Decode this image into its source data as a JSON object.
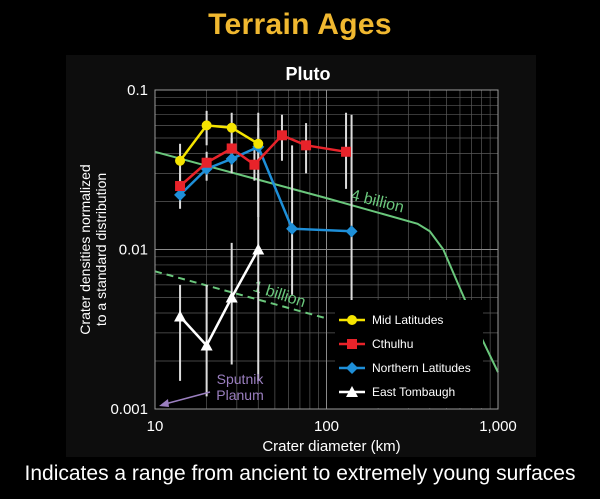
{
  "page": {
    "title": "Terrain Ages",
    "caption": "Indicates a range from ancient to extremely  young surfaces"
  },
  "colors": {
    "title": "#f0b830",
    "mid_latitudes": "#f5e400",
    "cthulhu": "#e8232a",
    "northern_latitudes": "#1e8fd8",
    "east_tombaugh": "#ffffff",
    "age_curve": "#6ac77c",
    "sputnik": "#9b7fc0"
  },
  "chart_data": {
    "type": "line",
    "title": "Pluto",
    "xlabel": "Crater diameter (km)",
    "ylabel": "Crater densities normalized to a standard distribution",
    "ylabel_lines": [
      "Crater densities normalized",
      "to a standard distribution"
    ],
    "x_scale": "log",
    "y_scale": "log",
    "xlim": [
      10,
      1000
    ],
    "ylim": [
      0.001,
      0.1
    ],
    "x_ticks": [
      {
        "value": 10,
        "label": "10"
      },
      {
        "value": 100,
        "label": "100"
      },
      {
        "value": 1000,
        "label": "1,000"
      }
    ],
    "y_ticks": [
      {
        "value": 0.001,
        "label": "0.001"
      },
      {
        "value": 0.01,
        "label": "0.01"
      },
      {
        "value": 0.1,
        "label": "0.1"
      }
    ],
    "grid": true,
    "legend_position": "lower-right",
    "series": [
      {
        "name": "Mid Latitudes",
        "color_key": "mid_latitudes",
        "marker": "circle",
        "x": [
          14,
          20,
          28,
          40
        ],
        "y": [
          0.036,
          0.06,
          0.058,
          0.046
        ],
        "err_low": [
          0.027,
          0.045,
          0.044,
          0.034
        ],
        "err_high": [
          0.046,
          0.074,
          0.072,
          0.058
        ]
      },
      {
        "name": "Cthulhu",
        "color_key": "cthulhu",
        "marker": "square",
        "x": [
          14,
          20,
          28,
          38,
          55,
          76,
          130
        ],
        "y": [
          0.025,
          0.035,
          0.043,
          0.034,
          0.052,
          0.045,
          0.041
        ],
        "err_low": [
          0.021,
          0.03,
          0.036,
          0.027,
          0.036,
          0.03,
          0.024
        ],
        "err_high": [
          0.03,
          0.041,
          0.05,
          0.042,
          0.07,
          0.062,
          0.072
        ]
      },
      {
        "name": "Northern Latitudes",
        "color_key": "northern_latitudes",
        "marker": "diamond",
        "x": [
          14,
          20,
          28,
          40,
          63,
          140
        ],
        "y": [
          0.022,
          0.032,
          0.037,
          0.044,
          0.0135,
          0.013
        ],
        "err_low": [
          0.018,
          0.027,
          0.03,
          0.016,
          0.0052,
          0.0045
        ],
        "err_high": [
          0.027,
          0.037,
          0.045,
          0.072,
          0.045,
          0.07
        ]
      },
      {
        "name": "East Tombaugh",
        "color_key": "east_tombaugh",
        "marker": "triangle",
        "x": [
          14,
          20,
          28,
          40
        ],
        "y": [
          0.0038,
          0.0025,
          0.005,
          0.01
        ],
        "err_low": [
          0.0015,
          0.0012,
          0.0019,
          0.0015
        ],
        "err_high": [
          0.006,
          0.006,
          0.011,
          0.03
        ]
      }
    ],
    "reference_curves": [
      {
        "label": "4 billion",
        "style": "solid",
        "x": [
          10,
          100,
          340,
          400,
          480,
          600,
          800,
          1000
        ],
        "y": [
          0.041,
          0.021,
          0.0145,
          0.013,
          0.01,
          0.0057,
          0.0028,
          0.0017
        ]
      },
      {
        "label": "1 billion",
        "style": "dashed",
        "x": [
          10,
          100
        ],
        "y": [
          0.0073,
          0.0037
        ]
      },
      {
        "label": "",
        "style": "dashed",
        "x": [
          560,
          620
        ],
        "y": [
          0.00112,
          0.00102
        ]
      }
    ],
    "annotations": [
      {
        "text_lines": [
          "Sputnik",
          "Planum"
        ],
        "color_key": "sputnik"
      }
    ]
  }
}
